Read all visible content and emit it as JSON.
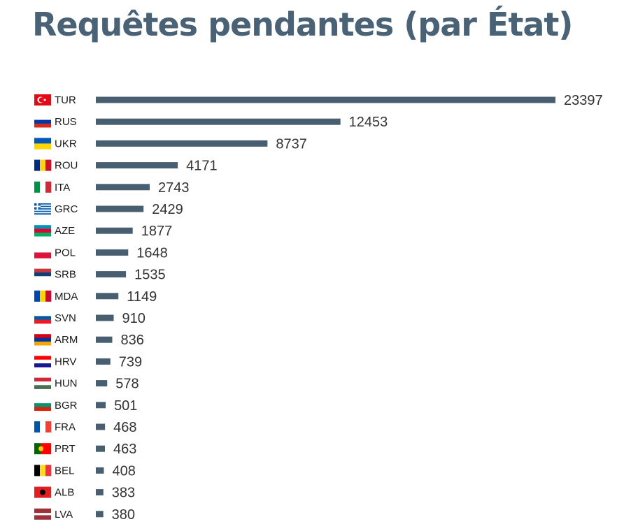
{
  "chart_data": {
    "type": "bar",
    "orientation": "horizontal",
    "title": "Requêtes pendantes (par État)",
    "categories": [
      "TUR",
      "RUS",
      "UKR",
      "ROU",
      "ITA",
      "GRC",
      "AZE",
      "POL",
      "SRB",
      "MDA",
      "SVN",
      "ARM",
      "HRV",
      "HUN",
      "BGR",
      "FRA",
      "PRT",
      "BEL",
      "ALB",
      "LVA"
    ],
    "values": [
      23397,
      12453,
      8737,
      4171,
      2743,
      2429,
      1877,
      1648,
      1535,
      1149,
      910,
      836,
      739,
      578,
      501,
      468,
      463,
      408,
      383,
      380
    ],
    "bar_color": "#485f71",
    "flags": [
      {
        "code": "TUR",
        "kind": "tur",
        "colors": [
          "#e30a17",
          "#ffffff"
        ]
      },
      {
        "code": "RUS",
        "kind": "h",
        "colors": [
          "#ffffff",
          "#0039a6",
          "#d52b1e"
        ]
      },
      {
        "code": "UKR",
        "kind": "h",
        "colors": [
          "#0057b7",
          "#ffd700"
        ]
      },
      {
        "code": "ROU",
        "kind": "v",
        "colors": [
          "#002b7f",
          "#fcd116",
          "#ce1126"
        ]
      },
      {
        "code": "ITA",
        "kind": "v",
        "colors": [
          "#009246",
          "#ffffff",
          "#ce2b37"
        ]
      },
      {
        "code": "GRC",
        "kind": "grc",
        "colors": [
          "#0d5eaf",
          "#ffffff"
        ]
      },
      {
        "code": "AZE",
        "kind": "h",
        "colors": [
          "#0092bc",
          "#e4002b",
          "#00af66"
        ]
      },
      {
        "code": "POL",
        "kind": "h",
        "colors": [
          "#ffffff",
          "#dc143c"
        ]
      },
      {
        "code": "SRB",
        "kind": "h",
        "colors": [
          "#c6363c",
          "#0c4076",
          "#ffffff"
        ]
      },
      {
        "code": "MDA",
        "kind": "v",
        "colors": [
          "#0046ae",
          "#ffd200",
          "#cc092f"
        ]
      },
      {
        "code": "SVN",
        "kind": "h",
        "colors": [
          "#ffffff",
          "#005da4",
          "#ed1c24"
        ]
      },
      {
        "code": "ARM",
        "kind": "h",
        "colors": [
          "#d90012",
          "#0033a0",
          "#f2a800"
        ]
      },
      {
        "code": "HRV",
        "kind": "h",
        "colors": [
          "#ff0000",
          "#ffffff",
          "#171796"
        ]
      },
      {
        "code": "HUN",
        "kind": "h",
        "colors": [
          "#ce2939",
          "#ffffff",
          "#477050"
        ]
      },
      {
        "code": "BGR",
        "kind": "h",
        "colors": [
          "#ffffff",
          "#00966e",
          "#d62612"
        ]
      },
      {
        "code": "FRA",
        "kind": "v",
        "colors": [
          "#0055a4",
          "#ffffff",
          "#ef4135"
        ]
      },
      {
        "code": "PRT",
        "kind": "v2",
        "colors": [
          "#006600",
          "#ff0000"
        ]
      },
      {
        "code": "BEL",
        "kind": "v",
        "colors": [
          "#000000",
          "#fdda24",
          "#ef3340"
        ]
      },
      {
        "code": "ALB",
        "kind": "solid",
        "colors": [
          "#e41e20"
        ]
      },
      {
        "code": "LVA",
        "kind": "lva",
        "colors": [
          "#9e3039",
          "#ffffff"
        ]
      }
    ]
  }
}
